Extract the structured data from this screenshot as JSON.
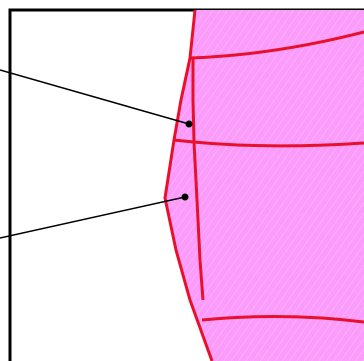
{
  "colors": {
    "background": "#ffffff",
    "frame": "#000000",
    "region_fill": "#fb9cfb",
    "region_fill_stripe": "#ffb8ff",
    "edge": "#e8102a",
    "leader": "#000000",
    "dot": "#000000"
  },
  "diagram": {
    "description_labels": [],
    "callouts": [
      {
        "name": "callout-upper"
      },
      {
        "name": "callout-lower"
      }
    ]
  }
}
